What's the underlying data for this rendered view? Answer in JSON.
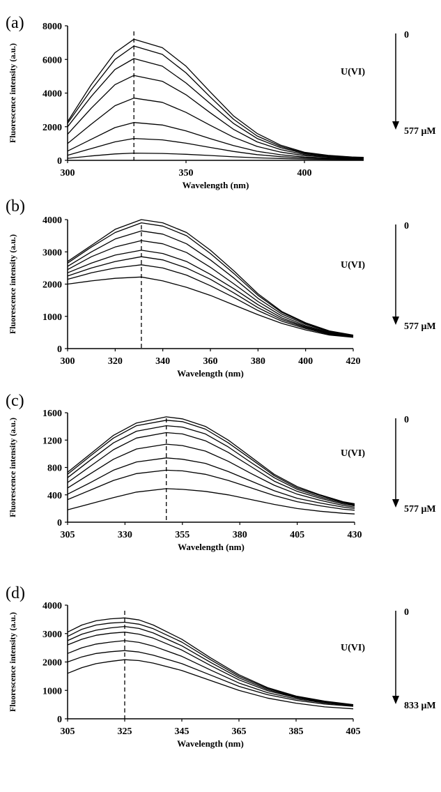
{
  "chart_data": [
    {
      "panel": "(a)",
      "type": "line",
      "xlabel": "Wavelength (nm)",
      "ylabel": "Fluorescence intensity (a.u.)",
      "xlim": [
        300,
        425
      ],
      "ylim": [
        0,
        8000
      ],
      "xticks": [
        300,
        350,
        400
      ],
      "yticks": [
        0,
        2000,
        4000,
        6000,
        8000
      ],
      "peak_marker_x": 328,
      "annotation": {
        "top": "0",
        "label": "U(VI)",
        "bottom": "577 μM"
      },
      "series": [
        {
          "x": [
            300,
            310,
            320,
            328,
            340,
            350,
            360,
            370,
            380,
            390,
            400,
            410,
            420,
            425
          ],
          "y": [
            2300,
            4500,
            6400,
            7200,
            6700,
            5600,
            4100,
            2650,
            1600,
            900,
            480,
            300,
            200,
            180
          ]
        },
        {
          "x": [
            300,
            310,
            320,
            328,
            340,
            350,
            360,
            370,
            380,
            390,
            400,
            410,
            420,
            425
          ],
          "y": [
            2200,
            4200,
            6000,
            6800,
            6300,
            5200,
            3800,
            2450,
            1450,
            830,
            440,
            280,
            190,
            170
          ]
        },
        {
          "x": [
            300,
            310,
            320,
            328,
            340,
            350,
            360,
            370,
            380,
            390,
            400,
            410,
            420,
            425
          ],
          "y": [
            2000,
            3800,
            5400,
            6050,
            5600,
            4600,
            3400,
            2200,
            1300,
            750,
            400,
            260,
            180,
            160
          ]
        },
        {
          "x": [
            300,
            310,
            320,
            328,
            340,
            350,
            360,
            370,
            380,
            390,
            400,
            410,
            420,
            425
          ],
          "y": [
            1550,
            3100,
            4500,
            5050,
            4700,
            3900,
            2850,
            1850,
            1100,
            640,
            350,
            230,
            160,
            140
          ]
        },
        {
          "x": [
            300,
            310,
            320,
            328,
            340,
            350,
            360,
            370,
            380,
            390,
            400,
            410,
            420,
            425
          ],
          "y": [
            1000,
            2150,
            3250,
            3700,
            3450,
            2850,
            2100,
            1380,
            830,
            490,
            280,
            190,
            140,
            120
          ]
        },
        {
          "x": [
            300,
            310,
            320,
            328,
            340,
            350,
            360,
            370,
            380,
            390,
            400,
            410,
            420,
            425
          ],
          "y": [
            550,
            1250,
            1950,
            2250,
            2100,
            1750,
            1300,
            880,
            540,
            330,
            200,
            140,
            110,
            100
          ]
        },
        {
          "x": [
            300,
            310,
            320,
            328,
            340,
            350,
            360,
            370,
            380,
            390,
            400,
            410,
            420,
            425
          ],
          "y": [
            300,
            700,
            1100,
            1300,
            1220,
            1020,
            770,
            530,
            340,
            220,
            140,
            100,
            80,
            80
          ]
        },
        {
          "x": [
            300,
            310,
            320,
            328,
            340,
            350,
            360,
            370,
            380,
            390,
            400,
            410,
            420,
            425
          ],
          "y": [
            120,
            260,
            380,
            430,
            410,
            360,
            290,
            210,
            150,
            110,
            80,
            60,
            50,
            50
          ]
        }
      ]
    },
    {
      "panel": "(b)",
      "type": "line",
      "xlabel": "Wavelength (nm)",
      "ylabel": "Fluorescence intensity (a.u.)",
      "xlim": [
        300,
        420
      ],
      "ylim": [
        0,
        4000
      ],
      "xticks": [
        300,
        320,
        340,
        360,
        380,
        400,
        420
      ],
      "yticks": [
        0,
        1000,
        2000,
        3000,
        4000
      ],
      "peak_marker_x": 331,
      "annotation": {
        "top": "0",
        "label": "U(VI)",
        "bottom": "577 μM"
      },
      "series": [
        {
          "x": [
            300,
            310,
            320,
            331,
            340,
            350,
            360,
            370,
            380,
            390,
            400,
            410,
            420
          ],
          "y": [
            2700,
            3200,
            3700,
            4000,
            3900,
            3600,
            3050,
            2400,
            1700,
            1150,
            800,
            550,
            420
          ]
        },
        {
          "x": [
            300,
            310,
            320,
            331,
            340,
            350,
            360,
            370,
            380,
            390,
            400,
            410,
            420
          ],
          "y": [
            2650,
            3150,
            3600,
            3900,
            3800,
            3500,
            2950,
            2320,
            1650,
            1120,
            780,
            540,
            410
          ]
        },
        {
          "x": [
            300,
            310,
            320,
            331,
            340,
            350,
            360,
            370,
            380,
            390,
            400,
            410,
            420
          ],
          "y": [
            2550,
            3000,
            3400,
            3650,
            3550,
            3250,
            2750,
            2180,
            1560,
            1070,
            750,
            520,
            400
          ]
        },
        {
          "x": [
            300,
            310,
            320,
            331,
            340,
            350,
            360,
            370,
            380,
            390,
            400,
            410,
            420
          ],
          "y": [
            2450,
            2850,
            3150,
            3350,
            3250,
            2980,
            2520,
            2000,
            1460,
            1010,
            710,
            500,
            390
          ]
        },
        {
          "x": [
            300,
            310,
            320,
            331,
            340,
            350,
            360,
            370,
            380,
            390,
            400,
            410,
            420
          ],
          "y": [
            2350,
            2650,
            2900,
            3050,
            2950,
            2700,
            2300,
            1850,
            1360,
            950,
            680,
            480,
            380
          ]
        },
        {
          "x": [
            300,
            310,
            320,
            331,
            340,
            350,
            360,
            370,
            380,
            390,
            400,
            410,
            420
          ],
          "y": [
            2250,
            2500,
            2700,
            2850,
            2750,
            2500,
            2150,
            1720,
            1270,
            900,
            650,
            460,
            370
          ]
        },
        {
          "x": [
            300,
            310,
            320,
            331,
            340,
            350,
            360,
            370,
            380,
            390,
            400,
            410,
            420
          ],
          "y": [
            2150,
            2350,
            2500,
            2600,
            2500,
            2280,
            1950,
            1580,
            1180,
            850,
            620,
            440,
            360
          ]
        },
        {
          "x": [
            300,
            310,
            320,
            331,
            340,
            350,
            360,
            370,
            380,
            390,
            400,
            410,
            420
          ],
          "y": [
            2000,
            2100,
            2180,
            2220,
            2100,
            1900,
            1650,
            1350,
            1050,
            780,
            580,
            420,
            350
          ]
        }
      ]
    },
    {
      "panel": "(c)",
      "type": "line",
      "xlabel": "Wavelength (nm)",
      "ylabel": "Fluorescence intensity (a.u.)",
      "xlim": [
        305,
        430
      ],
      "ylim": [
        0,
        1600
      ],
      "xticks": [
        305,
        330,
        355,
        380,
        405,
        430
      ],
      "yticks": [
        0,
        400,
        800,
        1200,
        1600
      ],
      "peak_marker_x": 348,
      "annotation": {
        "top": "0",
        "label": "U(VI)",
        "bottom": "577 μM"
      },
      "series": [
        {
          "x": [
            305,
            315,
            325,
            335,
            348,
            355,
            365,
            375,
            385,
            395,
            405,
            415,
            425,
            430
          ],
          "y": [
            730,
            1000,
            1270,
            1450,
            1540,
            1510,
            1400,
            1200,
            950,
            700,
            520,
            400,
            300,
            270
          ]
        },
        {
          "x": [
            305,
            315,
            325,
            335,
            348,
            355,
            365,
            375,
            385,
            395,
            405,
            415,
            425,
            430
          ],
          "y": [
            700,
            970,
            1230,
            1410,
            1490,
            1470,
            1360,
            1160,
            920,
            680,
            500,
            390,
            290,
            260
          ]
        },
        {
          "x": [
            305,
            315,
            325,
            335,
            348,
            355,
            365,
            375,
            385,
            395,
            405,
            415,
            425,
            430
          ],
          "y": [
            650,
            910,
            1160,
            1330,
            1410,
            1390,
            1290,
            1100,
            870,
            650,
            480,
            370,
            280,
            250
          ]
        },
        {
          "x": [
            305,
            315,
            325,
            335,
            348,
            355,
            365,
            375,
            385,
            395,
            405,
            415,
            425,
            430
          ],
          "y": [
            580,
            820,
            1060,
            1230,
            1310,
            1290,
            1190,
            1020,
            810,
            600,
            450,
            350,
            265,
            240
          ]
        },
        {
          "x": [
            305,
            315,
            325,
            335,
            348,
            355,
            365,
            375,
            385,
            395,
            405,
            415,
            425,
            430
          ],
          "y": [
            500,
            710,
            920,
            1070,
            1140,
            1120,
            1040,
            890,
            710,
            540,
            410,
            320,
            245,
            220
          ]
        },
        {
          "x": [
            305,
            315,
            325,
            335,
            348,
            355,
            365,
            375,
            385,
            395,
            405,
            415,
            425,
            430
          ],
          "y": [
            410,
            580,
            760,
            880,
            940,
            920,
            860,
            740,
            600,
            460,
            350,
            280,
            220,
            200
          ]
        },
        {
          "x": [
            305,
            315,
            325,
            335,
            348,
            355,
            365,
            375,
            385,
            395,
            405,
            415,
            425,
            430
          ],
          "y": [
            330,
            470,
            610,
            710,
            760,
            750,
            700,
            610,
            500,
            390,
            300,
            240,
            190,
            175
          ]
        },
        {
          "x": [
            305,
            315,
            325,
            335,
            348,
            355,
            365,
            375,
            385,
            395,
            405,
            415,
            425,
            430
          ],
          "y": [
            180,
            270,
            360,
            440,
            490,
            480,
            450,
            400,
            330,
            260,
            200,
            160,
            130,
            120
          ]
        }
      ]
    },
    {
      "panel": "(d)",
      "type": "line",
      "xlabel": "Wavelength (nm)",
      "ylabel": "Fluorescence intensity (a.u.)",
      "xlim": [
        305,
        405
      ],
      "ylim": [
        0,
        4000
      ],
      "xticks": [
        305,
        325,
        345,
        365,
        385,
        405
      ],
      "yticks": [
        0,
        1000,
        2000,
        3000,
        4000
      ],
      "peak_marker_x": 325,
      "annotation": {
        "top": "0",
        "label": "U(VI)",
        "bottom": "833 μM"
      },
      "series": [
        {
          "x": [
            305,
            310,
            315,
            320,
            325,
            330,
            335,
            345,
            355,
            365,
            375,
            385,
            395,
            405
          ],
          "y": [
            3050,
            3300,
            3450,
            3520,
            3550,
            3480,
            3300,
            2800,
            2150,
            1550,
            1100,
            800,
            620,
            500
          ]
        },
        {
          "x": [
            305,
            310,
            315,
            320,
            325,
            330,
            335,
            345,
            355,
            365,
            375,
            385,
            395,
            405
          ],
          "y": [
            2900,
            3150,
            3300,
            3370,
            3400,
            3330,
            3170,
            2700,
            2080,
            1500,
            1070,
            780,
            600,
            490
          ]
        },
        {
          "x": [
            305,
            310,
            315,
            320,
            325,
            330,
            335,
            345,
            355,
            365,
            375,
            385,
            395,
            405
          ],
          "y": [
            2750,
            2980,
            3120,
            3200,
            3250,
            3180,
            3020,
            2570,
            1990,
            1440,
            1030,
            760,
            590,
            480
          ]
        },
        {
          "x": [
            305,
            310,
            315,
            320,
            325,
            330,
            335,
            345,
            355,
            365,
            375,
            385,
            395,
            405
          ],
          "y": [
            2600,
            2800,
            2940,
            3010,
            3050,
            2980,
            2840,
            2420,
            1880,
            1370,
            990,
            740,
            580,
            470
          ]
        },
        {
          "x": [
            305,
            310,
            315,
            320,
            325,
            330,
            335,
            345,
            355,
            365,
            375,
            385,
            395,
            405
          ],
          "y": [
            2300,
            2500,
            2630,
            2700,
            2750,
            2690,
            2560,
            2200,
            1720,
            1260,
            920,
            700,
            560,
            460
          ]
        },
        {
          "x": [
            305,
            310,
            315,
            320,
            325,
            330,
            335,
            345,
            355,
            365,
            375,
            385,
            395,
            405
          ],
          "y": [
            2000,
            2180,
            2300,
            2360,
            2400,
            2350,
            2240,
            1940,
            1540,
            1140,
            850,
            650,
            520,
            440
          ]
        },
        {
          "x": [
            305,
            310,
            315,
            320,
            325,
            330,
            335,
            345,
            355,
            365,
            375,
            385,
            395,
            405
          ],
          "y": [
            1600,
            1800,
            1940,
            2020,
            2080,
            2050,
            1960,
            1700,
            1350,
            1000,
            730,
            550,
            420,
            350
          ]
        }
      ]
    }
  ]
}
